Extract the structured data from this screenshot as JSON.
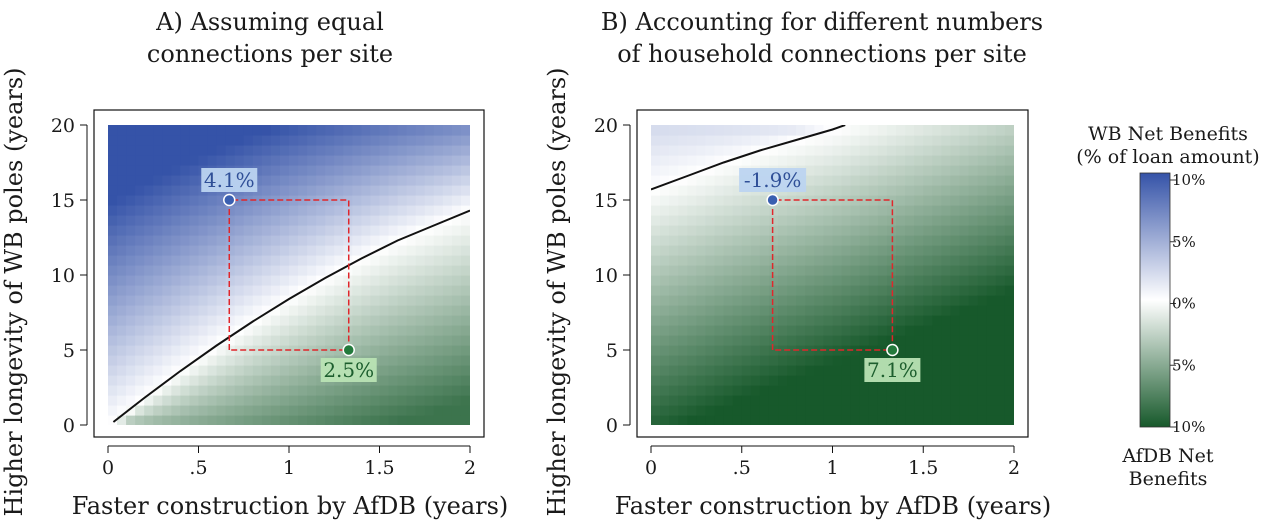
{
  "shared": {
    "ylabel": "Higher longevity of WB poles (years)"
  },
  "colorbar": {
    "title_line1": "WB Net Benefits",
    "title_line2": "(% of loan amount)",
    "bottom_line1": "AfDB Net",
    "bottom_line2": "Benefits",
    "tick_labels": [
      "10%",
      "5%",
      "0%",
      "5%",
      "10%"
    ],
    "tick_values": [
      10,
      5,
      0,
      -5,
      -10
    ],
    "color_top": "#3553a8",
    "color_mid": "#ffffff",
    "color_bottom": "#17592b"
  },
  "colors": {
    "wb_point": "#3a5fb0",
    "afdb_point": "#237a3c",
    "dashed_box": "#e0262b",
    "contour": "#111111"
  },
  "chart_data": [
    {
      "type": "heatmap",
      "title_line1": "A) Assuming equal",
      "title_line2": "connections per site",
      "xlabel": "Faster construction by AfDB (years)",
      "ylabel": "Higher longevity of WB poles (years)",
      "xlim": [
        0,
        2
      ],
      "ylim": [
        0,
        20
      ],
      "xticks": [
        0,
        0.5,
        1,
        1.5,
        2
      ],
      "xtick_labels": [
        "0",
        ".5",
        "1",
        "1.5",
        "2"
      ],
      "yticks": [
        0,
        5,
        10,
        15,
        20
      ],
      "ytick_labels": [
        "0",
        "5",
        "10",
        "15",
        "20"
      ],
      "zero_contour": [
        [
          0.03,
          0.2
        ],
        [
          0.2,
          1.8
        ],
        [
          0.4,
          3.6
        ],
        [
          0.6,
          5.3
        ],
        [
          0.8,
          6.9
        ],
        [
          1.0,
          8.4
        ],
        [
          1.2,
          9.8
        ],
        [
          1.4,
          11.1
        ],
        [
          1.6,
          12.3
        ],
        [
          1.8,
          13.3
        ],
        [
          2.0,
          14.3
        ]
      ],
      "points": [
        {
          "x": 0.67,
          "y": 15,
          "label": "4.1%",
          "side": "wb"
        },
        {
          "x": 1.33,
          "y": 5,
          "label": "2.5%",
          "side": "afdb"
        }
      ],
      "dashed_box": {
        "x0": 0.67,
        "x1": 1.33,
        "y0": 5,
        "y1": 15
      },
      "corner_values": {
        "x0y20": 9,
        "x2y0": -7
      }
    },
    {
      "type": "heatmap",
      "title_line1": "B) Accounting for different numbers",
      "title_line2": "of household connections per site",
      "xlabel": "Faster construction by AfDB (years)",
      "ylabel": "Higher longevity of WB poles (years)",
      "xlim": [
        0,
        2
      ],
      "ylim": [
        0,
        20
      ],
      "xticks": [
        0,
        0.5,
        1,
        1.5,
        2
      ],
      "xtick_labels": [
        "0",
        ".5",
        "1",
        "1.5",
        "2"
      ],
      "yticks": [
        0,
        5,
        10,
        15,
        20
      ],
      "ytick_labels": [
        "0",
        "5",
        "10",
        "15",
        "20"
      ],
      "zero_contour": [
        [
          0,
          15.7
        ],
        [
          0.2,
          16.6
        ],
        [
          0.4,
          17.5
        ],
        [
          0.6,
          18.3
        ],
        [
          0.8,
          19.0
        ],
        [
          1.0,
          19.7
        ],
        [
          1.07,
          20.0
        ]
      ],
      "points": [
        {
          "x": 0.67,
          "y": 15,
          "label": "-1.9%",
          "side": "wb"
        },
        {
          "x": 1.33,
          "y": 5,
          "label": "7.1%",
          "side": "afdb"
        }
      ],
      "dashed_box": {
        "x0": 0.67,
        "x1": 1.33,
        "y0": 5,
        "y1": 15
      },
      "corner_values": {
        "x0y20": 2,
        "x2y0": -10
      }
    }
  ]
}
